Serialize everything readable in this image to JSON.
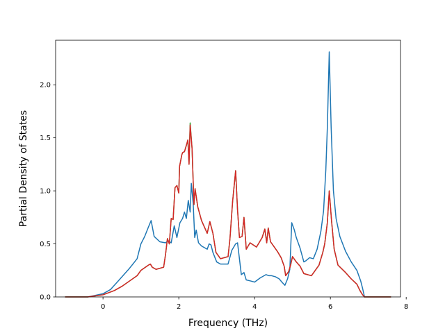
{
  "chart_data": {
    "type": "line",
    "xlabel": "Frequency (THz)",
    "ylabel": "Partial Density of States",
    "xlim": [
      -1.25,
      7.85
    ],
    "ylim": [
      0.0,
      2.42
    ],
    "x_ticks": [
      0,
      2,
      4,
      6,
      8
    ],
    "y_ticks": [
      0.0,
      0.5,
      1.0,
      1.5,
      2.0
    ],
    "x_tick_labels": [
      "0",
      "2",
      "4",
      "6",
      "8"
    ],
    "y_tick_labels": [
      "0.0",
      "0.5",
      "1.0",
      "1.5",
      "2.0"
    ],
    "grid": false,
    "legend": false,
    "series": [
      {
        "color": "#1f77b4",
        "points": [
          [
            -1.0,
            0.0
          ],
          [
            -0.4,
            0.0
          ],
          [
            0.0,
            0.03
          ],
          [
            0.2,
            0.07
          ],
          [
            0.4,
            0.15
          ],
          [
            0.5,
            0.19
          ],
          [
            0.7,
            0.27
          ],
          [
            0.9,
            0.36
          ],
          [
            1.0,
            0.5
          ],
          [
            1.1,
            0.57
          ],
          [
            1.2,
            0.66
          ],
          [
            1.27,
            0.72
          ],
          [
            1.35,
            0.57
          ],
          [
            1.5,
            0.52
          ],
          [
            1.65,
            0.51
          ],
          [
            1.72,
            0.53
          ],
          [
            1.8,
            0.51
          ],
          [
            1.88,
            0.67
          ],
          [
            1.95,
            0.56
          ],
          [
            2.03,
            0.7
          ],
          [
            2.1,
            0.74
          ],
          [
            2.15,
            0.8
          ],
          [
            2.2,
            0.74
          ],
          [
            2.25,
            0.91
          ],
          [
            2.3,
            0.8
          ],
          [
            2.33,
            1.07
          ],
          [
            2.38,
            0.88
          ],
          [
            2.42,
            0.56
          ],
          [
            2.46,
            0.63
          ],
          [
            2.52,
            0.51
          ],
          [
            2.6,
            0.48
          ],
          [
            2.75,
            0.45
          ],
          [
            2.8,
            0.5
          ],
          [
            2.85,
            0.49
          ],
          [
            2.9,
            0.42
          ],
          [
            3.0,
            0.33
          ],
          [
            3.1,
            0.31
          ],
          [
            3.3,
            0.31
          ],
          [
            3.4,
            0.44
          ],
          [
            3.5,
            0.5
          ],
          [
            3.55,
            0.51
          ],
          [
            3.6,
            0.36
          ],
          [
            3.65,
            0.21
          ],
          [
            3.72,
            0.23
          ],
          [
            3.78,
            0.16
          ],
          [
            3.9,
            0.15
          ],
          [
            4.0,
            0.14
          ],
          [
            4.15,
            0.18
          ],
          [
            4.3,
            0.21
          ],
          [
            4.38,
            0.2
          ],
          [
            4.45,
            0.2
          ],
          [
            4.55,
            0.19
          ],
          [
            4.65,
            0.17
          ],
          [
            4.72,
            0.14
          ],
          [
            4.8,
            0.11
          ],
          [
            4.87,
            0.17
          ],
          [
            4.93,
            0.26
          ],
          [
            4.98,
            0.7
          ],
          [
            5.05,
            0.63
          ],
          [
            5.1,
            0.56
          ],
          [
            5.2,
            0.46
          ],
          [
            5.3,
            0.33
          ],
          [
            5.35,
            0.34
          ],
          [
            5.45,
            0.37
          ],
          [
            5.55,
            0.36
          ],
          [
            5.65,
            0.45
          ],
          [
            5.75,
            0.62
          ],
          [
            5.82,
            0.81
          ],
          [
            5.88,
            1.2
          ],
          [
            5.92,
            1.6
          ],
          [
            5.97,
            2.31
          ],
          [
            6.02,
            1.6
          ],
          [
            6.08,
            1.0
          ],
          [
            6.15,
            0.74
          ],
          [
            6.25,
            0.57
          ],
          [
            6.4,
            0.43
          ],
          [
            6.55,
            0.33
          ],
          [
            6.7,
            0.25
          ],
          [
            6.8,
            0.15
          ],
          [
            6.85,
            0.08
          ],
          [
            6.9,
            0.0
          ],
          [
            7.6,
            0.0
          ]
        ]
      },
      {
        "color": "#2ca02c",
        "points": [
          [
            -1.0,
            0.0
          ],
          [
            -0.4,
            0.0
          ],
          [
            0.0,
            0.02
          ],
          [
            0.3,
            0.06
          ],
          [
            0.5,
            0.1
          ],
          [
            0.7,
            0.15
          ],
          [
            0.9,
            0.2
          ],
          [
            1.0,
            0.25
          ],
          [
            1.2,
            0.3
          ],
          [
            1.25,
            0.31
          ],
          [
            1.3,
            0.28
          ],
          [
            1.4,
            0.26
          ],
          [
            1.6,
            0.28
          ],
          [
            1.65,
            0.4
          ],
          [
            1.7,
            0.55
          ],
          [
            1.75,
            0.5
          ],
          [
            1.8,
            0.74
          ],
          [
            1.85,
            0.73
          ],
          [
            1.9,
            1.03
          ],
          [
            1.95,
            1.05
          ],
          [
            2.0,
            0.98
          ],
          [
            2.02,
            1.23
          ],
          [
            2.08,
            1.34
          ],
          [
            2.1,
            1.36
          ],
          [
            2.15,
            1.37
          ],
          [
            2.2,
            1.43
          ],
          [
            2.24,
            1.48
          ],
          [
            2.27,
            1.25
          ],
          [
            2.3,
            1.64
          ],
          [
            2.35,
            1.4
          ],
          [
            2.4,
            0.87
          ],
          [
            2.43,
            1.02
          ],
          [
            2.5,
            0.85
          ],
          [
            2.6,
            0.72
          ],
          [
            2.75,
            0.6
          ],
          [
            2.82,
            0.71
          ],
          [
            2.9,
            0.6
          ],
          [
            2.98,
            0.42
          ],
          [
            3.1,
            0.36
          ],
          [
            3.3,
            0.38
          ],
          [
            3.35,
            0.55
          ],
          [
            3.42,
            0.9
          ],
          [
            3.5,
            1.19
          ],
          [
            3.55,
            0.82
          ],
          [
            3.6,
            0.56
          ],
          [
            3.67,
            0.57
          ],
          [
            3.72,
            0.75
          ],
          [
            3.78,
            0.45
          ],
          [
            3.88,
            0.51
          ],
          [
            4.05,
            0.47
          ],
          [
            4.2,
            0.56
          ],
          [
            4.27,
            0.64
          ],
          [
            4.32,
            0.51
          ],
          [
            4.36,
            0.65
          ],
          [
            4.42,
            0.52
          ],
          [
            4.5,
            0.48
          ],
          [
            4.6,
            0.43
          ],
          [
            4.7,
            0.37
          ],
          [
            4.78,
            0.29
          ],
          [
            4.82,
            0.2
          ],
          [
            4.9,
            0.24
          ],
          [
            4.95,
            0.3
          ],
          [
            5.0,
            0.38
          ],
          [
            5.1,
            0.33
          ],
          [
            5.2,
            0.29
          ],
          [
            5.3,
            0.22
          ],
          [
            5.5,
            0.2
          ],
          [
            5.7,
            0.3
          ],
          [
            5.8,
            0.42
          ],
          [
            5.85,
            0.5
          ],
          [
            5.92,
            0.7
          ],
          [
            5.97,
            1.0
          ],
          [
            6.03,
            0.72
          ],
          [
            6.1,
            0.45
          ],
          [
            6.2,
            0.3
          ],
          [
            6.4,
            0.23
          ],
          [
            6.55,
            0.17
          ],
          [
            6.7,
            0.12
          ],
          [
            6.78,
            0.06
          ],
          [
            6.85,
            0.02
          ],
          [
            6.9,
            0.0
          ],
          [
            7.6,
            0.0
          ]
        ]
      },
      {
        "color": "#d62728",
        "points": [
          [
            -1.0,
            0.0
          ],
          [
            -0.4,
            0.0
          ],
          [
            0.0,
            0.02
          ],
          [
            0.3,
            0.06
          ],
          [
            0.5,
            0.1
          ],
          [
            0.7,
            0.15
          ],
          [
            0.9,
            0.2
          ],
          [
            1.0,
            0.25
          ],
          [
            1.2,
            0.3
          ],
          [
            1.25,
            0.31
          ],
          [
            1.3,
            0.28
          ],
          [
            1.4,
            0.26
          ],
          [
            1.6,
            0.28
          ],
          [
            1.65,
            0.4
          ],
          [
            1.7,
            0.55
          ],
          [
            1.75,
            0.5
          ],
          [
            1.8,
            0.74
          ],
          [
            1.85,
            0.73
          ],
          [
            1.9,
            1.03
          ],
          [
            1.95,
            1.05
          ],
          [
            2.0,
            0.98
          ],
          [
            2.02,
            1.23
          ],
          [
            2.08,
            1.34
          ],
          [
            2.1,
            1.36
          ],
          [
            2.15,
            1.37
          ],
          [
            2.2,
            1.43
          ],
          [
            2.24,
            1.48
          ],
          [
            2.27,
            1.25
          ],
          [
            2.3,
            1.62
          ],
          [
            2.35,
            1.4
          ],
          [
            2.4,
            0.87
          ],
          [
            2.43,
            1.02
          ],
          [
            2.5,
            0.85
          ],
          [
            2.6,
            0.72
          ],
          [
            2.75,
            0.6
          ],
          [
            2.82,
            0.71
          ],
          [
            2.9,
            0.6
          ],
          [
            2.98,
            0.42
          ],
          [
            3.1,
            0.36
          ],
          [
            3.3,
            0.38
          ],
          [
            3.35,
            0.55
          ],
          [
            3.42,
            0.9
          ],
          [
            3.5,
            1.19
          ],
          [
            3.55,
            0.82
          ],
          [
            3.6,
            0.56
          ],
          [
            3.67,
            0.57
          ],
          [
            3.72,
            0.75
          ],
          [
            3.78,
            0.45
          ],
          [
            3.88,
            0.51
          ],
          [
            4.05,
            0.47
          ],
          [
            4.2,
            0.56
          ],
          [
            4.27,
            0.64
          ],
          [
            4.32,
            0.51
          ],
          [
            4.36,
            0.65
          ],
          [
            4.42,
            0.52
          ],
          [
            4.5,
            0.48
          ],
          [
            4.6,
            0.43
          ],
          [
            4.7,
            0.37
          ],
          [
            4.78,
            0.29
          ],
          [
            4.82,
            0.2
          ],
          [
            4.9,
            0.24
          ],
          [
            4.95,
            0.3
          ],
          [
            5.0,
            0.38
          ],
          [
            5.1,
            0.33
          ],
          [
            5.2,
            0.29
          ],
          [
            5.3,
            0.22
          ],
          [
            5.5,
            0.2
          ],
          [
            5.7,
            0.3
          ],
          [
            5.8,
            0.42
          ],
          [
            5.85,
            0.5
          ],
          [
            5.92,
            0.7
          ],
          [
            5.97,
            1.0
          ],
          [
            6.03,
            0.72
          ],
          [
            6.1,
            0.45
          ],
          [
            6.2,
            0.3
          ],
          [
            6.4,
            0.23
          ],
          [
            6.55,
            0.17
          ],
          [
            6.7,
            0.12
          ],
          [
            6.78,
            0.06
          ],
          [
            6.85,
            0.02
          ],
          [
            6.9,
            0.0
          ],
          [
            7.6,
            0.0
          ]
        ]
      }
    ]
  }
}
